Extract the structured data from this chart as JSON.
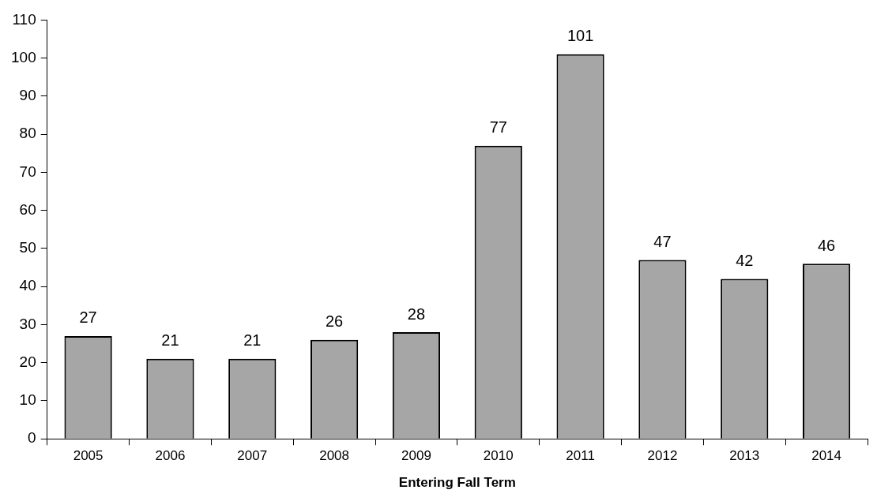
{
  "chart_data": {
    "type": "bar",
    "xlabel": "Entering Fall Term",
    "categories": [
      "2005",
      "2006",
      "2007",
      "2008",
      "2009",
      "2010",
      "2011",
      "2012",
      "2013",
      "2014"
    ],
    "values": [
      27,
      21,
      21,
      26,
      28,
      77,
      101,
      47,
      42,
      46
    ],
    "color": "#a6a6a6",
    "ylim": [
      0,
      110
    ],
    "yticks": [
      0,
      10,
      20,
      30,
      40,
      50,
      60,
      70,
      80,
      90,
      100,
      110
    ],
    "grid": false,
    "legend": false,
    "data_labels": true
  }
}
